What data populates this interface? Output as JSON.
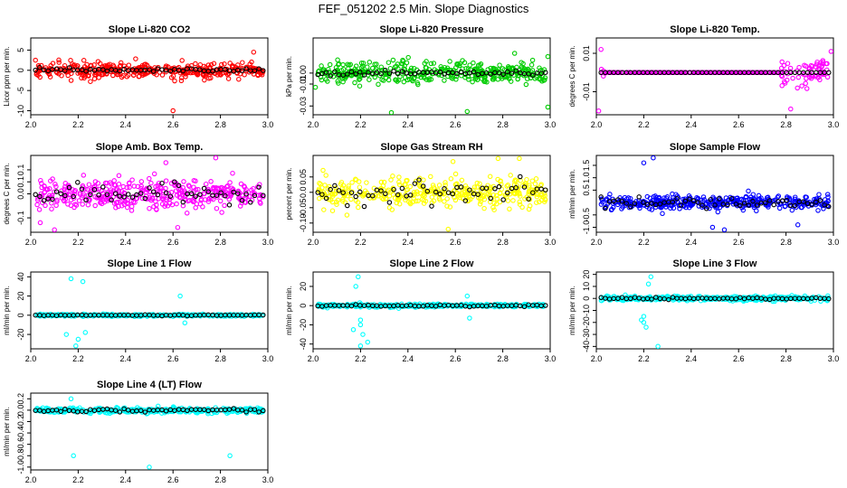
{
  "figure": {
    "title": "FEF_051202  2.5 Min. Slope Diagnostics"
  },
  "chart_data": [
    {
      "type": "scatter",
      "title": "Slope Li-820 CO2",
      "xlabel": "",
      "ylabel": "Licor ppm per min.",
      "xlim": [
        2.0,
        3.0
      ],
      "ylim": [
        -11,
        8
      ],
      "xticks": [
        2.0,
        2.2,
        2.4,
        2.6,
        2.8,
        3.0
      ],
      "yticks": [
        -10,
        -5,
        0,
        5
      ],
      "color": "#ff0000",
      "spread": 1.6,
      "black_spread": 0.5,
      "outliers": [
        [
          2.6,
          -10
        ],
        [
          2.94,
          4.5
        ],
        [
          2.02,
          2.5
        ]
      ]
    },
    {
      "type": "scatter",
      "title": "Slope Li-820 Pressure",
      "xlabel": "",
      "ylabel": "kPa per min.",
      "xlim": [
        2.0,
        3.0
      ],
      "ylim": [
        -0.038,
        0.032
      ],
      "xticks": [
        2.0,
        2.2,
        2.4,
        2.6,
        2.8,
        3.0
      ],
      "yticks": [
        -0.03,
        -0.01,
        0.0
      ],
      "color": "#00cc00",
      "spread": 0.009,
      "black_spread": 0.002,
      "outliers": [
        [
          2.33,
          -0.036
        ],
        [
          2.65,
          -0.035
        ],
        [
          2.99,
          -0.031
        ],
        [
          2.85,
          0.018
        ],
        [
          2.99,
          0.015
        ],
        [
          2.01,
          -0.013
        ]
      ]
    },
    {
      "type": "scatter",
      "title": "Slope Li-820 Temp.",
      "xlabel": "",
      "ylabel": "degrees C per min.",
      "xlim": [
        2.0,
        3.0
      ],
      "ylim": [
        -0.011,
        0.009
      ],
      "xticks": [
        2.0,
        2.2,
        2.4,
        2.6,
        2.8,
        3.0
      ],
      "yticks": [
        -0.005,
        0.005
      ],
      "color": "#ff00ff",
      "spread": 0.0,
      "black_spread": 0.0,
      "noisy_ranges": [
        [
          2.0,
          2.04,
          0.003
        ],
        [
          2.78,
          3.0,
          0.003
        ]
      ],
      "outliers": [
        [
          2.01,
          -0.01
        ],
        [
          2.02,
          0.006
        ],
        [
          2.82,
          -0.0095
        ],
        [
          2.99,
          0.0055
        ]
      ]
    },
    {
      "type": "scatter",
      "title": "Slope Amb. Box Temp.",
      "xlabel": "",
      "ylabel": "degrees C per min.",
      "xlim": [
        2.0,
        3.0
      ],
      "ylim": [
        -0.16,
        0.16
      ],
      "xticks": [
        2.0,
        2.2,
        2.4,
        2.6,
        2.8,
        3.0
      ],
      "yticks": [
        -0.1,
        0.0,
        0.05,
        0.1
      ],
      "color": "#ff00ff",
      "spread": 0.055,
      "black_spread": 0.04,
      "outliers": [
        [
          2.78,
          0.15
        ],
        [
          2.57,
          0.13
        ],
        [
          2.04,
          -0.12
        ],
        [
          2.1,
          -0.15
        ],
        [
          2.62,
          -0.14
        ]
      ]
    },
    {
      "type": "scatter",
      "title": "Slope Gas Stream RH",
      "xlabel": "",
      "ylabel": "percent per min.",
      "xlim": [
        2.0,
        3.0
      ],
      "ylim": [
        -0.13,
        0.12
      ],
      "xticks": [
        2.0,
        2.2,
        2.4,
        2.6,
        2.8,
        3.0
      ],
      "yticks": [
        -0.1,
        -0.05,
        0.0,
        0.05
      ],
      "color": "#ffff00",
      "spread": 0.04,
      "black_spread": 0.035,
      "outliers": [
        [
          2.59,
          0.1
        ],
        [
          2.78,
          0.11
        ],
        [
          2.57,
          -0.12
        ],
        [
          2.87,
          0.11
        ]
      ]
    },
    {
      "type": "scatter",
      "title": "Slope Sample Flow",
      "xlabel": "",
      "ylabel": "ml/min per min.",
      "xlim": [
        2.0,
        3.0
      ],
      "ylim": [
        -1.2,
        1.9
      ],
      "xticks": [
        2.0,
        2.2,
        2.4,
        2.6,
        2.8,
        3.0
      ],
      "yticks": [
        -1.0,
        -0.5,
        0.5,
        1.0,
        1.5
      ],
      "color": "#0000ff",
      "spread": 0.25,
      "black_spread": 0.2,
      "outliers": [
        [
          2.24,
          1.8
        ],
        [
          2.2,
          1.6
        ],
        [
          2.54,
          -1.1
        ],
        [
          2.49,
          -1.0
        ],
        [
          2.85,
          -0.9
        ]
      ]
    },
    {
      "type": "scatter",
      "title": "Slope Line 1 Flow",
      "xlabel": "",
      "ylabel": "ml/min per min.",
      "xlim": [
        2.0,
        3.0
      ],
      "ylim": [
        -35,
        45
      ],
      "xticks": [
        2.0,
        2.2,
        2.4,
        2.6,
        2.8,
        3.0
      ],
      "yticks": [
        -20,
        0,
        20,
        40
      ],
      "color": "#00ffff",
      "spread": 1.0,
      "black_spread": 0.5,
      "outliers": [
        [
          2.17,
          38
        ],
        [
          2.19,
          -32
        ],
        [
          2.22,
          35
        ],
        [
          2.15,
          -20
        ],
        [
          2.2,
          -25
        ],
        [
          2.23,
          -18
        ],
        [
          2.63,
          20
        ],
        [
          2.65,
          -8
        ]
      ]
    },
    {
      "type": "scatter",
      "title": "Slope Line 2 Flow",
      "xlabel": "",
      "ylabel": "ml/min per min.",
      "xlim": [
        2.0,
        3.0
      ],
      "ylim": [
        -45,
        35
      ],
      "xticks": [
        2.0,
        2.2,
        2.4,
        2.6,
        2.8,
        3.0
      ],
      "yticks": [
        -40,
        -20,
        0,
        20
      ],
      "color": "#00ffff",
      "spread": 1.5,
      "black_spread": 1.0,
      "outliers": [
        [
          2.19,
          30
        ],
        [
          2.2,
          -42
        ],
        [
          2.18,
          20
        ],
        [
          2.21,
          -30
        ],
        [
          2.23,
          -38
        ],
        [
          2.17,
          -25
        ],
        [
          2.2,
          -15
        ],
        [
          2.2,
          -20
        ],
        [
          2.66,
          -13
        ],
        [
          2.65,
          10
        ]
      ]
    },
    {
      "type": "scatter",
      "title": "Slope Line 3 Flow",
      "xlabel": "",
      "ylabel": "ml/min per min.",
      "xlim": [
        2.0,
        3.0
      ],
      "ylim": [
        -42,
        22
      ],
      "xticks": [
        2.0,
        2.2,
        2.4,
        2.6,
        2.8,
        3.0
      ],
      "yticks": [
        -40,
        -30,
        -20,
        -10,
        0,
        10,
        20
      ],
      "color": "#00ffff",
      "spread": 1.6,
      "black_spread": 1.0,
      "outliers": [
        [
          2.26,
          -40
        ],
        [
          2.23,
          18
        ],
        [
          2.2,
          -15
        ],
        [
          2.21,
          -24
        ],
        [
          2.19,
          -18
        ],
        [
          2.22,
          12
        ],
        [
          2.2,
          -20
        ]
      ]
    },
    {
      "type": "scatter",
      "title": "Slope Line 4 (LT) Flow",
      "xlabel": "",
      "ylabel": "ml/min per min.",
      "xlim": [
        2.0,
        3.0
      ],
      "ylim": [
        -1.05,
        0.3
      ],
      "xticks": [
        2.0,
        2.2,
        2.4,
        2.6,
        2.8,
        3.0
      ],
      "yticks": [
        -1.0,
        -0.8,
        -0.6,
        -0.4,
        -0.2,
        0.0,
        0.2
      ],
      "color": "#00ffff",
      "spread": 0.04,
      "black_spread": 0.03,
      "outliers": [
        [
          2.18,
          -0.8
        ],
        [
          2.5,
          -1.0
        ],
        [
          2.84,
          -0.8
        ],
        [
          2.17,
          0.2
        ]
      ]
    }
  ]
}
